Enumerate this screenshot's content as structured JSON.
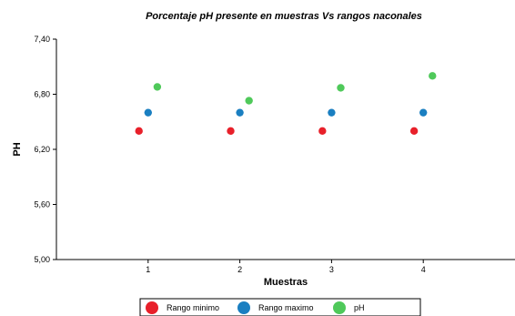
{
  "chart_data": {
    "type": "scatter",
    "title": "Porcentaje pH presente en muestras Vs rangos naconales",
    "xlabel": "Muestras",
    "ylabel": "PH",
    "xlim": [
      0,
      5
    ],
    "ylim": [
      5.0,
      7.4
    ],
    "x_ticks": [
      1,
      2,
      3,
      4
    ],
    "x_tick_labels": [
      "1",
      "2",
      "3",
      "4"
    ],
    "y_ticks": [
      5.0,
      5.6,
      6.2,
      6.8,
      7.4
    ],
    "y_tick_labels": [
      "5,00",
      "5,60",
      "6,20",
      "6,80",
      "7,40"
    ],
    "grid": false,
    "legend_position": "bottom",
    "series": [
      {
        "name": "Rango minimo",
        "color": "#e8202a",
        "points": [
          [
            0.9,
            6.4
          ],
          [
            1.9,
            6.4
          ],
          [
            2.9,
            6.4
          ],
          [
            3.9,
            6.4
          ]
        ]
      },
      {
        "name": "Rango maximo",
        "color": "#1a7fc1",
        "points": [
          [
            1.0,
            6.6
          ],
          [
            2.0,
            6.6
          ],
          [
            3.0,
            6.6
          ],
          [
            4.0,
            6.6
          ]
        ]
      },
      {
        "name": "pH",
        "color": "#4fc95a",
        "points": [
          [
            1.1,
            6.88
          ],
          [
            2.1,
            6.73
          ],
          [
            3.1,
            6.87
          ],
          [
            4.1,
            7.0
          ]
        ]
      }
    ]
  }
}
